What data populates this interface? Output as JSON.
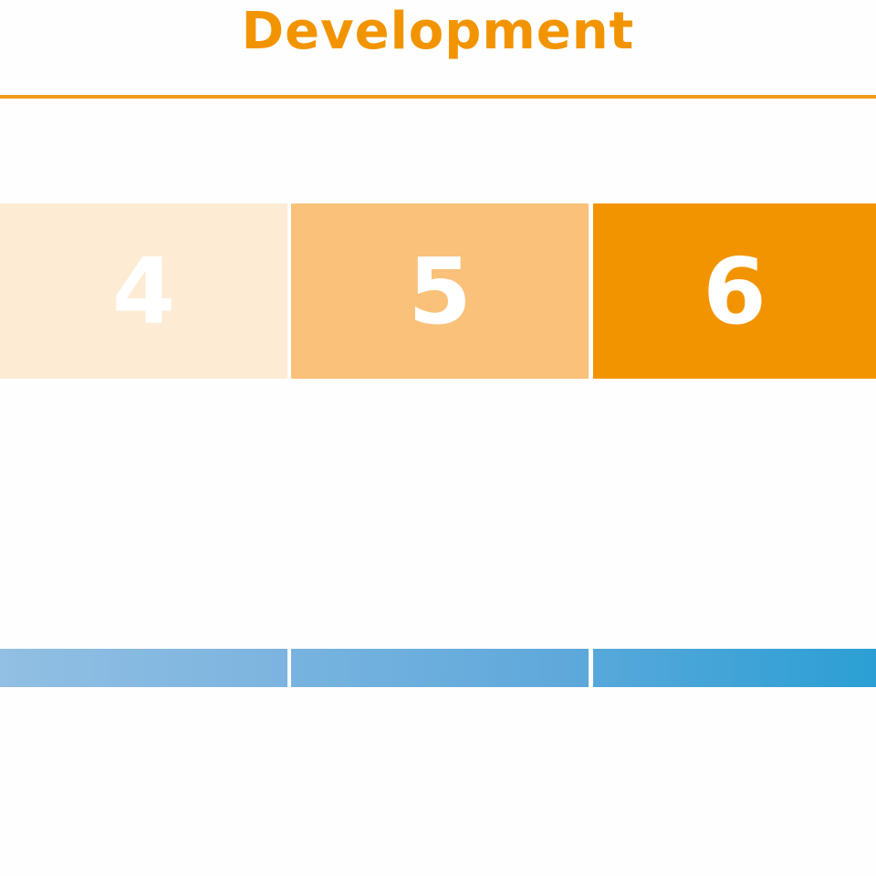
{
  "title": "Development",
  "colors": {
    "accent": "#f29400",
    "box_light": "#fdebd4",
    "box_mid": "#f9c17a",
    "box_dark": "#f29400",
    "blue_start": "#92bfe3",
    "blue_end": "#2b9fd4"
  },
  "stages": [
    {
      "label": "4"
    },
    {
      "label": "5"
    },
    {
      "label": "6"
    }
  ]
}
